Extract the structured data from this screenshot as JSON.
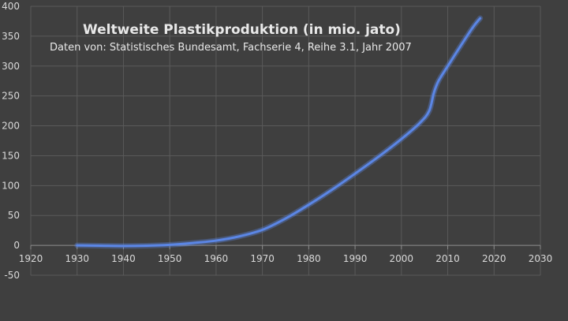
{
  "chart_data": {
    "type": "line",
    "title": "Weltweite Plastikproduktion (in mio. jato)",
    "subtitle": "Daten von: Statistisches Bundesamt, Fachserie 4, Reihe 3.1, Jahr 2007",
    "xlabel": "",
    "ylabel": "",
    "xlim": [
      1920,
      2030
    ],
    "ylim": [
      -50,
      400
    ],
    "xticks": [
      1920,
      1930,
      1940,
      1950,
      1960,
      1970,
      1980,
      1990,
      2000,
      2010,
      2020,
      2030
    ],
    "yticks": [
      -50,
      0,
      50,
      100,
      150,
      200,
      250,
      300,
      350,
      400
    ],
    "grid": true,
    "legend": "none",
    "colors": {
      "line": "#5b86e5",
      "background": "#3f3f3f",
      "grid": "#5a5a5a",
      "text": "#d9d9d9"
    },
    "series": [
      {
        "x": [
          1930,
          1935,
          1940,
          1945,
          1950,
          1955,
          1960,
          1965,
          1970,
          1975,
          1980,
          1985,
          1990,
          1995,
          2000,
          2004,
          2006,
          2007,
          2008,
          2010,
          2015,
          2017
        ],
        "y": [
          0,
          -0.5,
          -1,
          -0.5,
          1,
          4,
          8,
          15,
          26,
          45,
          68,
          93,
          120,
          148,
          178,
          205,
          225,
          255,
          275,
          300,
          360,
          380
        ]
      }
    ]
  }
}
